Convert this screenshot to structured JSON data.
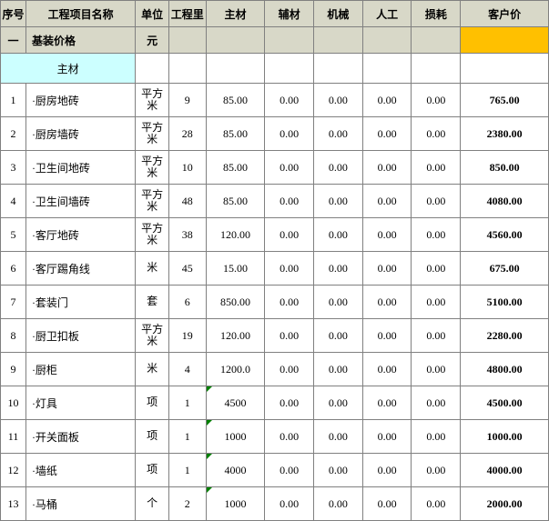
{
  "colors": {
    "header_bg": "#d8d8c8",
    "section_bg": "#ccffff",
    "highlight_bg": "#ffc000",
    "border": "#808080",
    "corner_mark": "#008000"
  },
  "headers": {
    "seq": "序号",
    "name": "工程项目名称",
    "unit": "单位",
    "qty": "工程里",
    "main": "主材",
    "aux": "辅材",
    "mach": "机械",
    "labor": "人工",
    "loss": "损耗",
    "price": "客户价"
  },
  "base_row": {
    "seq": "一",
    "name": "基装价格",
    "unit": "元"
  },
  "section": "主材",
  "rows": [
    {
      "seq": "1",
      "name": "·厨房地砖",
      "unit": "平方米",
      "qty": "9",
      "main": "85.00",
      "aux": "0.00",
      "mach": "0.00",
      "labor": "0.00",
      "loss": "0.00",
      "price": "765.00",
      "tri": false
    },
    {
      "seq": "2",
      "name": "·厨房墙砖",
      "unit": "平方米",
      "qty": "28",
      "main": "85.00",
      "aux": "0.00",
      "mach": "0.00",
      "labor": "0.00",
      "loss": "0.00",
      "price": "2380.00",
      "tri": false
    },
    {
      "seq": "3",
      "name": "·卫生间地砖",
      "unit": "平方米",
      "qty": "10",
      "main": "85.00",
      "aux": "0.00",
      "mach": "0.00",
      "labor": "0.00",
      "loss": "0.00",
      "price": "850.00",
      "tri": false
    },
    {
      "seq": "4",
      "name": "·卫生间墙砖",
      "unit": "平方米",
      "qty": "48",
      "main": "85.00",
      "aux": "0.00",
      "mach": "0.00",
      "labor": "0.00",
      "loss": "0.00",
      "price": "4080.00",
      "tri": false
    },
    {
      "seq": "5",
      "name": "·客厅地砖",
      "unit": "平方米",
      "qty": "38",
      "main": "120.00",
      "aux": "0.00",
      "mach": "0.00",
      "labor": "0.00",
      "loss": "0.00",
      "price": "4560.00",
      "tri": false
    },
    {
      "seq": "6",
      "name": "·客厅踢角线",
      "unit": "米",
      "qty": "45",
      "main": "15.00",
      "aux": "0.00",
      "mach": "0.00",
      "labor": "0.00",
      "loss": "0.00",
      "price": "675.00",
      "tri": false
    },
    {
      "seq": "7",
      "name": "·套装门",
      "unit": "套",
      "qty": "6",
      "main": "850.00",
      "aux": "0.00",
      "mach": "0.00",
      "labor": "0.00",
      "loss": "0.00",
      "price": "5100.00",
      "tri": false
    },
    {
      "seq": "8",
      "name": "·厨卫扣板",
      "unit": "平方米",
      "qty": "19",
      "main": "120.00",
      "aux": "0.00",
      "mach": "0.00",
      "labor": "0.00",
      "loss": "0.00",
      "price": "2280.00",
      "tri": false
    },
    {
      "seq": "9",
      "name": "·厨柜",
      "unit": "米",
      "qty": "4",
      "main": "1200.0",
      "aux": "0.00",
      "mach": "0.00",
      "labor": "0.00",
      "loss": "0.00",
      "price": "4800.00",
      "tri": false
    },
    {
      "seq": "10",
      "name": "·灯具",
      "unit": "项",
      "qty": "1",
      "main": "4500",
      "aux": "0.00",
      "mach": "0.00",
      "labor": "0.00",
      "loss": "0.00",
      "price": "4500.00",
      "tri": true
    },
    {
      "seq": "11",
      "name": "·开关面板",
      "unit": "项",
      "qty": "1",
      "main": "1000",
      "aux": "0.00",
      "mach": "0.00",
      "labor": "0.00",
      "loss": "0.00",
      "price": "1000.00",
      "tri": true
    },
    {
      "seq": "12",
      "name": "·墙纸",
      "unit": "项",
      "qty": "1",
      "main": "4000",
      "aux": "0.00",
      "mach": "0.00",
      "labor": "0.00",
      "loss": "0.00",
      "price": "4000.00",
      "tri": true
    },
    {
      "seq": "13",
      "name": "·马桶",
      "unit": "个",
      "qty": "2",
      "main": "1000",
      "aux": "0.00",
      "mach": "0.00",
      "labor": "0.00",
      "loss": "0.00",
      "price": "2000.00",
      "tri": true
    }
  ]
}
